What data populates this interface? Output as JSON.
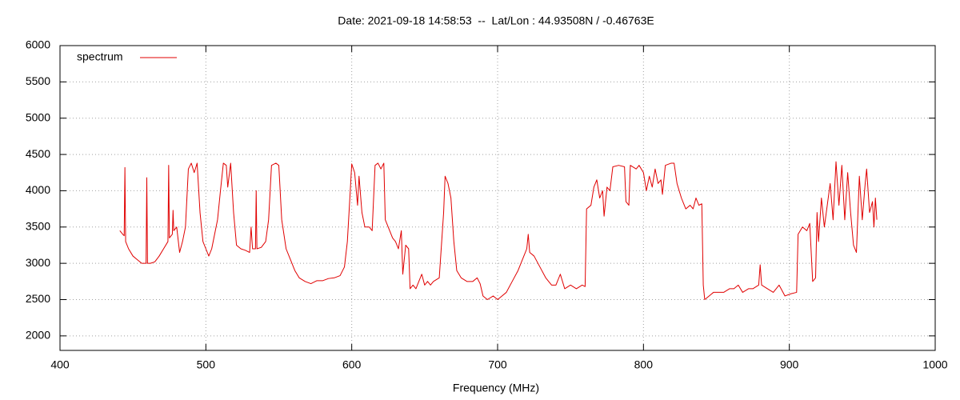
{
  "chart_data": {
    "type": "line",
    "title": "Date: 2021-09-18 14:58:53  --  Lat/Lon : 44.93508N / -0.46763E",
    "x_label": "Frequency (MHz)",
    "xlim": [
      400,
      1000
    ],
    "xticks": [
      400,
      500,
      600,
      700,
      800,
      900,
      1000
    ],
    "ylim": [
      1800,
      6000
    ],
    "yticks": [
      2000,
      2500,
      3000,
      3500,
      4000,
      4500,
      5000,
      5500,
      6000
    ],
    "grid": true,
    "legend": "upper-left",
    "x": [
      441,
      443,
      444,
      444.5,
      445,
      447,
      450,
      453,
      456,
      459,
      459.5,
      460,
      462,
      465,
      468,
      471,
      474,
      474.5,
      475,
      477,
      477.5,
      478,
      480,
      482,
      484,
      486,
      488,
      490,
      492,
      494,
      496,
      498,
      500,
      502,
      504,
      506,
      508,
      510,
      512,
      514,
      515,
      517,
      519,
      521,
      524,
      527,
      530,
      531,
      532,
      534,
      534.5,
      535,
      538,
      541,
      543,
      545,
      548,
      550,
      552,
      555,
      558,
      561,
      564,
      568,
      572,
      576,
      580,
      584,
      588,
      592,
      595,
      597,
      599,
      600,
      602,
      604,
      605,
      607,
      609,
      612,
      614,
      616,
      618,
      620,
      622,
      623,
      626,
      628,
      630,
      632,
      634,
      635,
      637,
      639,
      640,
      642,
      644,
      646,
      648,
      650,
      652,
      654,
      656,
      660,
      663,
      664,
      666,
      668,
      670,
      672,
      675,
      679,
      683,
      686,
      688,
      690,
      693,
      697,
      700,
      703,
      706,
      710,
      714,
      718,
      720,
      721,
      722,
      725,
      729,
      733,
      737,
      740,
      743,
      746,
      750,
      754,
      758,
      760,
      761,
      764,
      766,
      768,
      770,
      772,
      773,
      775,
      777,
      779,
      783,
      787,
      788,
      790,
      791,
      795,
      797,
      800,
      802,
      804,
      806,
      808,
      810,
      812,
      813,
      815,
      819,
      821,
      823,
      826,
      829,
      832,
      834,
      836,
      838,
      840,
      841,
      842,
      845,
      848,
      851,
      855,
      859,
      862,
      865,
      868,
      872,
      875,
      879,
      880,
      881,
      885,
      889,
      893,
      897,
      901,
      905,
      906,
      909,
      912,
      914,
      916,
      918,
      919,
      920,
      922,
      924,
      926,
      928,
      930,
      932,
      934,
      936,
      938,
      940,
      942,
      944,
      946,
      948,
      950,
      952,
      953,
      955,
      957,
      958,
      959,
      960
    ],
    "series": [
      {
        "name": "spectrum",
        "color": "#e00000",
        "values": [
          3450,
          3400,
          3380,
          4320,
          3300,
          3200,
          3100,
          3050,
          3000,
          3000,
          4180,
          3000,
          3000,
          3020,
          3100,
          3200,
          3300,
          4350,
          3350,
          3400,
          3730,
          3450,
          3500,
          3150,
          3300,
          3500,
          4300,
          4380,
          4250,
          4380,
          3700,
          3300,
          3200,
          3100,
          3200,
          3400,
          3600,
          4000,
          4380,
          4350,
          4050,
          4380,
          3700,
          3250,
          3200,
          3180,
          3150,
          3500,
          3200,
          3200,
          4000,
          3200,
          3220,
          3300,
          3600,
          4350,
          4380,
          4350,
          3600,
          3200,
          3050,
          2900,
          2800,
          2750,
          2720,
          2760,
          2760,
          2790,
          2800,
          2830,
          2950,
          3300,
          4000,
          4370,
          4250,
          3800,
          4200,
          3700,
          3500,
          3500,
          3450,
          4350,
          4380,
          4300,
          4380,
          3600,
          3450,
          3350,
          3300,
          3200,
          3450,
          2850,
          3250,
          3200,
          2650,
          2700,
          2650,
          2750,
          2850,
          2700,
          2750,
          2700,
          2750,
          2800,
          3700,
          4200,
          4100,
          3900,
          3300,
          2900,
          2800,
          2750,
          2750,
          2800,
          2720,
          2550,
          2500,
          2550,
          2500,
          2550,
          2600,
          2750,
          2900,
          3100,
          3200,
          3400,
          3150,
          3100,
          2950,
          2800,
          2700,
          2700,
          2850,
          2650,
          2700,
          2650,
          2700,
          2680,
          3750,
          3800,
          4050,
          4150,
          3900,
          4000,
          3650,
          4050,
          4000,
          4330,
          4350,
          4330,
          3850,
          3800,
          4350,
          4300,
          4350,
          4250,
          4000,
          4200,
          4050,
          4300,
          4100,
          4150,
          3950,
          4350,
          4380,
          4380,
          4100,
          3900,
          3750,
          3800,
          3750,
          3900,
          3800,
          3820,
          2700,
          2500,
          2550,
          2600,
          2600,
          2600,
          2650,
          2650,
          2700,
          2600,
          2650,
          2650,
          2700,
          2980,
          2700,
          2650,
          2600,
          2700,
          2550,
          2580,
          2600,
          3400,
          3500,
          3450,
          3550,
          2750,
          2800,
          3700,
          3300,
          3900,
          3500,
          3800,
          4100,
          3600,
          4400,
          3800,
          4350,
          3600,
          4250,
          3700,
          3250,
          3150,
          4200,
          3600,
          4100,
          4300,
          3700,
          3850,
          3500,
          3900,
          3600
        ]
      }
    ]
  }
}
